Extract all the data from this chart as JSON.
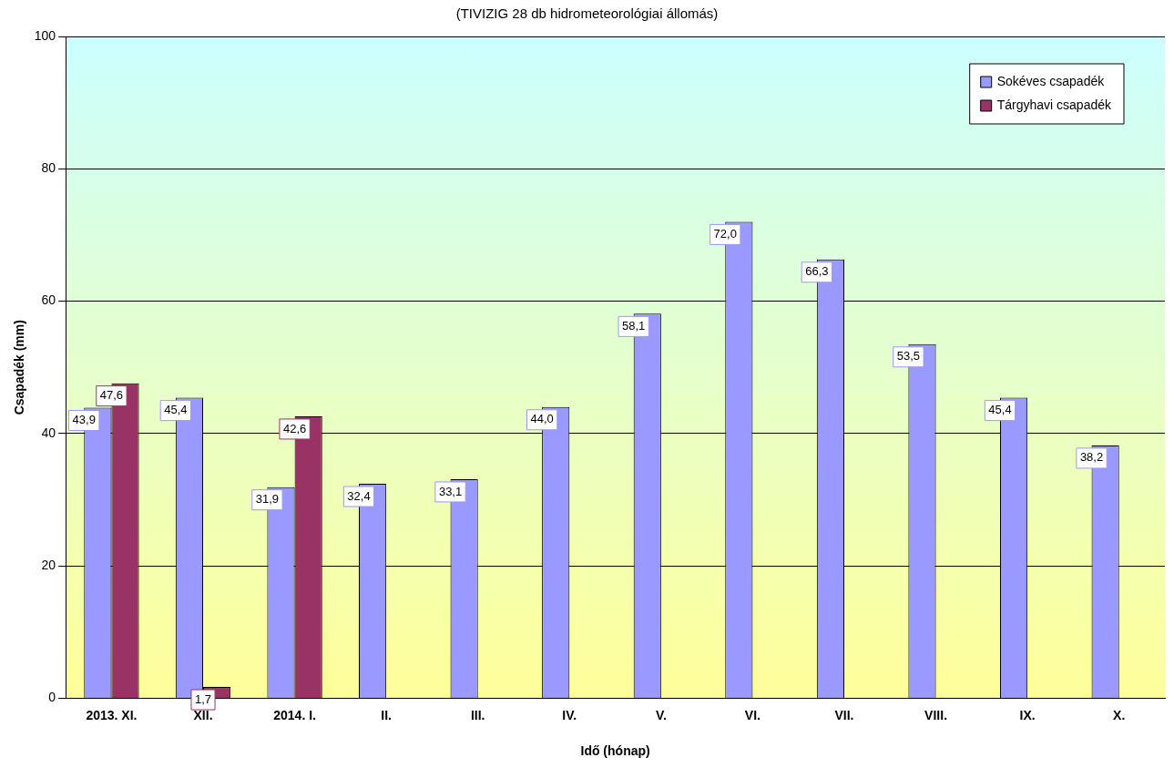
{
  "chart_data": {
    "type": "bar",
    "subtitle": "(TIVIZIG 28 db hidrometeorológiai állomás)",
    "xlabel": "Idő (hónap)",
    "ylabel": "Csapadék (mm)",
    "categories": [
      "2013. XI.",
      "XII.",
      "2014. I.",
      "II.",
      "III.",
      "IV.",
      "V.",
      "VI.",
      "VII.",
      "VIII.",
      "IX.",
      "X."
    ],
    "series": [
      {
        "name": "Sokéves csapadék",
        "color": "#9999ff",
        "values": [
          43.9,
          45.4,
          31.9,
          32.4,
          33.1,
          44.0,
          58.1,
          72.0,
          66.3,
          53.5,
          45.4,
          38.2
        ],
        "value_labels": [
          "43,9",
          "45,4",
          "31,9",
          "32,4",
          "33,1",
          "44,0",
          "58,1",
          "72,0",
          "66,3",
          "53,5",
          "45,4",
          "38,2"
        ]
      },
      {
        "name": "Tárgyhavi csapadék",
        "color": "#993366",
        "values": [
          47.6,
          1.7,
          42.6,
          null,
          null,
          null,
          null,
          null,
          null,
          null,
          null,
          null
        ],
        "value_labels": [
          "47,6",
          "1,7",
          "42,6",
          null,
          null,
          null,
          null,
          null,
          null,
          null,
          null,
          null
        ]
      }
    ],
    "ylim": [
      0,
      100
    ],
    "yticks": [
      0,
      20,
      40,
      60,
      80,
      100
    ],
    "grid": "y",
    "legend": "top right"
  }
}
